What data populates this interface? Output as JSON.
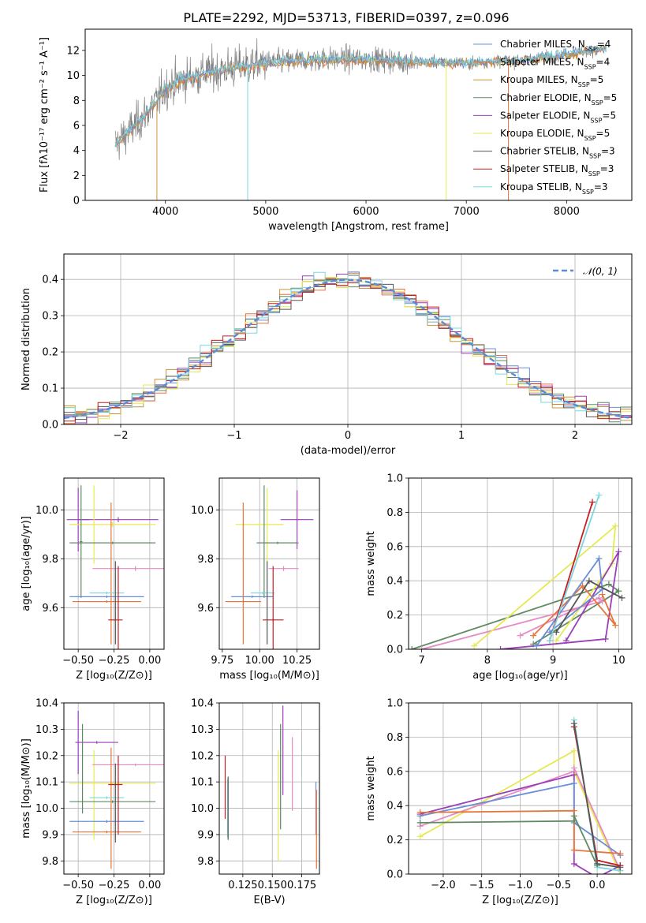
{
  "title": "PLATE=2292, MJD=53713, FIBERID=0397, z=0.096",
  "colors": {
    "Chabrier MILES": "#6a8ed8",
    "Salpeter MILES": "#e8743a",
    "Kroupa MILES": "#c8963a",
    "Chabrier ELODIE": "#5f8a62",
    "Salpeter ELODIE": "#9a3fb8",
    "Kroupa ELODIE": "#e6ea52",
    "Chabrier STELIB": "#555555",
    "Salpeter STELIB": "#c81e1e",
    "Kroupa STELIB": "#7ad7e0",
    "pink": "#e68ac3",
    "spectrum_gray": "#7f7f7f",
    "axis": "#000000",
    "grid": "#b0b0b0"
  },
  "chart_data": [
    {
      "id": "spectrum",
      "type": "line",
      "title": "PLATE=2292, MJD=53713, FIBERID=0397, z=0.096",
      "xlabel": "wavelength [Angstrom, rest frame]",
      "ylabel": "Flux [fλ10⁻¹⁷ erg cm⁻² s⁻¹ A⁻¹]",
      "xlim": [
        3200,
        8650
      ],
      "ylim": [
        0,
        13.7
      ],
      "xticks": [
        "4000",
        "5000",
        "6000",
        "7000",
        "8000"
      ],
      "yticks": [
        "0",
        "2",
        "4",
        "6",
        "8",
        "10",
        "12"
      ],
      "grid": false,
      "legend_position": "right",
      "series": [
        {
          "name": "Chabrier MILES, N_SSP=4"
        },
        {
          "name": "Salpeter MILES, N_SSP=4"
        },
        {
          "name": "Kroupa MILES, N_SSP=5"
        },
        {
          "name": "Chabrier ELODIE, N_SSP=5"
        },
        {
          "name": "Salpeter ELODIE, N_SSP=5"
        },
        {
          "name": "Kroupa ELODIE, N_SSP=5"
        },
        {
          "name": "Chabrier STELIB, N_SSP=3"
        },
        {
          "name": "Salpeter STELIB, N_SSP=3"
        },
        {
          "name": "Kroupa STELIB, N_SSP=3"
        }
      ],
      "continuum": {
        "x": [
          3500,
          3700,
          3900,
          4000,
          4200,
          4500,
          5000,
          5500,
          6000,
          6500,
          7000,
          7500,
          8000,
          8400
        ],
        "y": [
          4.5,
          6.0,
          7.8,
          9.0,
          9.8,
          10.4,
          11.0,
          11.3,
          11.3,
          11.1,
          11.0,
          11.2,
          11.7,
          12.2
        ]
      },
      "noise_amplitude": 1.6
    },
    {
      "id": "residuals",
      "type": "bar",
      "xlabel": "(data-model)/error",
      "ylabel": "Normed distribution",
      "xlim": [
        -2.5,
        2.5
      ],
      "ylim": [
        0,
        0.47
      ],
      "xticks": [
        "−2",
        "−1",
        "0",
        "1",
        "2"
      ],
      "yticks": [
        "0.0",
        "0.1",
        "0.2",
        "0.3",
        "0.4"
      ],
      "grid": true,
      "legend": "𝒩(0, 1)",
      "legend_position": "top-right",
      "bin_width": 0.1
    },
    {
      "id": "age_vs_Z",
      "type": "scatter",
      "xlabel": "Z [log₁₀(Z/Z⊙)]",
      "ylabel": "age  [log₁₀(age/yr)]",
      "xlim": [
        -0.6,
        0.1
      ],
      "ylim": [
        9.43,
        10.13
      ],
      "xticks": [
        "−0.50",
        "−0.25",
        "0.00"
      ],
      "yticks": [
        "9.6",
        "9.8",
        "10.0"
      ],
      "grid": true,
      "errorbars": [
        {
          "series": "Salpeter ELODIE",
          "x": -0.5,
          "xerr": 0.08,
          "y": 9.96,
          "yerr": 0.13
        },
        {
          "series": "Salpeter ELODIE",
          "x": -0.22,
          "xerr": 0.28,
          "y": 9.96,
          "yerr": 0.01
        },
        {
          "series": "Kroupa ELODIE",
          "x": -0.39,
          "xerr": 0.0,
          "y": 9.94,
          "yerr": 0.16
        },
        {
          "series": "Kroupa ELODIE",
          "x": -0.26,
          "xerr": 0.3,
          "y": 9.94,
          "yerr": 0.01
        },
        {
          "series": "Chabrier ELODIE",
          "x": -0.48,
          "xerr": 0.01,
          "y": 9.87,
          "yerr": 0.23
        },
        {
          "series": "Chabrier ELODIE",
          "x": -0.26,
          "xerr": 0.3,
          "y": 9.865,
          "yerr": 0.005
        },
        {
          "series": "pink",
          "x": -0.1,
          "xerr": 0.3,
          "y": 9.76,
          "yerr": 0.01
        },
        {
          "series": "Chabrier MILES",
          "x": -0.3,
          "xerr": 0.26,
          "y": 9.645,
          "yerr": 0.005
        },
        {
          "series": "Salpeter MILES",
          "x": -0.3,
          "xerr": 0.24,
          "y": 9.625,
          "yerr": 0.005
        },
        {
          "series": "Salpeter MILES",
          "x": -0.27,
          "xerr": 0.0,
          "y": 9.74,
          "yerr": 0.29
        },
        {
          "series": "Kroupa STELIB",
          "x": -0.3,
          "xerr": 0.12,
          "y": 9.66,
          "yerr": 0.005
        },
        {
          "series": "Salpeter STELIB",
          "x": -0.24,
          "xerr": 0.05,
          "y": 9.55,
          "yerr": 0.005
        },
        {
          "series": "Salpeter STELIB",
          "x": -0.22,
          "xerr": 0.0,
          "y": 9.6,
          "yerr": 0.17
        },
        {
          "series": "Chabrier STELIB",
          "x": -0.24,
          "xerr": 0.0,
          "y": 9.62,
          "yerr": 0.17
        }
      ]
    },
    {
      "id": "age_vs_mass",
      "type": "scatter",
      "xlabel": "mass [log₁₀(M/M⊙)]",
      "ylabel": "",
      "xlim": [
        9.73,
        10.4
      ],
      "ylim": [
        9.43,
        10.13
      ],
      "xticks": [
        "9.75",
        "10.00",
        "10.25"
      ],
      "yticks": [
        "9.6",
        "9.8",
        "10.0"
      ],
      "grid": true,
      "errorbars": [
        {
          "series": "Salpeter ELODIE",
          "x": 10.25,
          "xerr": 0.0,
          "y": 9.96,
          "yerr": 0.12
        },
        {
          "series": "Salpeter ELODIE",
          "x": 10.25,
          "xerr": 0.11,
          "y": 9.96,
          "yerr": 0.005
        },
        {
          "series": "Kroupa ELODIE",
          "x": 10.05,
          "xerr": 0.0,
          "y": 9.94,
          "yerr": 0.15
        },
        {
          "series": "Kroupa ELODIE",
          "x": 10.0,
          "xerr": 0.16,
          "y": 9.94,
          "yerr": 0.005
        },
        {
          "series": "Chabrier ELODIE",
          "x": 10.03,
          "xerr": 0.0,
          "y": 9.87,
          "yerr": 0.23
        },
        {
          "series": "Chabrier ELODIE",
          "x": 10.12,
          "xerr": 0.14,
          "y": 9.865,
          "yerr": 0.005
        },
        {
          "series": "pink",
          "x": 10.16,
          "xerr": 0.1,
          "y": 9.76,
          "yerr": 0.01
        },
        {
          "series": "Chabrier MILES",
          "x": 9.95,
          "xerr": 0.14,
          "y": 9.645,
          "yerr": 0.005
        },
        {
          "series": "Salpeter MILES",
          "x": 9.89,
          "xerr": 0.12,
          "y": 9.625,
          "yerr": 0.005
        },
        {
          "series": "Salpeter MILES",
          "x": 9.89,
          "xerr": 0.0,
          "y": 9.74,
          "yerr": 0.29
        },
        {
          "series": "Kroupa STELIB",
          "x": 10.02,
          "xerr": 0.08,
          "y": 9.66,
          "yerr": 0.005
        },
        {
          "series": "Salpeter STELIB",
          "x": 10.09,
          "xerr": 0.07,
          "y": 9.55,
          "yerr": 0.005
        },
        {
          "series": "Salpeter STELIB",
          "x": 10.09,
          "xerr": 0.0,
          "y": 9.6,
          "yerr": 0.17
        },
        {
          "series": "Chabrier STELIB",
          "x": 10.05,
          "xerr": 0.0,
          "y": 9.62,
          "yerr": 0.17
        }
      ]
    },
    {
      "id": "weight_vs_age",
      "type": "line",
      "xlabel": "age  [log₁₀(age/yr)]",
      "ylabel": "mass weight",
      "xlim": [
        6.8,
        10.2
      ],
      "ylim": [
        0,
        1.0
      ],
      "xticks": [
        "7",
        "8",
        "9",
        "10"
      ],
      "yticks": [
        "0.0",
        "0.2",
        "0.4",
        "0.6",
        "0.8",
        "1.0"
      ],
      "grid": true,
      "series": [
        {
          "series": "Chabrier ELODIE",
          "x": [
            6.85,
            9.85,
            10.0,
            8.7
          ],
          "y": [
            0.0,
            0.38,
            0.34,
            0.03
          ]
        },
        {
          "series": "pink",
          "x": [
            7.0,
            9.75,
            9.7,
            8.5
          ],
          "y": [
            0.0,
            0.28,
            0.3,
            0.08
          ]
        },
        {
          "series": "Kroupa ELODIE",
          "x": [
            7.8,
            9.95,
            9.9,
            9.05
          ],
          "y": [
            0.02,
            0.72,
            0.5,
            0.05
          ]
        },
        {
          "series": "Salpeter ELODIE",
          "x": [
            8.2,
            9.8,
            10.0,
            9.2
          ],
          "y": [
            0.0,
            0.06,
            0.57,
            0.05
          ]
        },
        {
          "series": "Salpeter MILES",
          "x": [
            8.7,
            9.45,
            9.95,
            9.75
          ],
          "y": [
            0.08,
            0.37,
            0.14,
            0.32
          ]
        },
        {
          "series": "Chabrier MILES",
          "x": [
            8.75,
            9.7,
            9.75,
            8.95
          ],
          "y": [
            0.02,
            0.53,
            0.35,
            0.1
          ]
        },
        {
          "series": "Salpeter STELIB",
          "x": [
            8.95,
            9.6
          ],
          "y": [
            0.05,
            0.86
          ]
        },
        {
          "series": "Kroupa STELIB",
          "x": [
            8.95,
            9.7
          ],
          "y": [
            0.05,
            0.9
          ]
        },
        {
          "series": "Chabrier STELIB",
          "x": [
            9.05,
            9.55,
            10.05
          ],
          "y": [
            0.1,
            0.4,
            0.3
          ]
        }
      ]
    },
    {
      "id": "mass_vs_Z",
      "type": "scatter",
      "xlabel": "Z [log₁₀(Z/Z⊙)]",
      "ylabel": "mass [log₁₀(M/M⊙)]",
      "xlim": [
        -0.6,
        0.1
      ],
      "ylim": [
        9.75,
        10.4
      ],
      "xticks": [
        "−0.50",
        "−0.25",
        "0.00"
      ],
      "yticks": [
        "9.8",
        "9.9",
        "10.0",
        "10.1",
        "10.2",
        "10.3",
        "10.4"
      ],
      "grid": true,
      "errorbars": [
        {
          "series": "Salpeter ELODIE",
          "x": -0.5,
          "xerr": 0.0,
          "y": 10.25,
          "yerr": 0.12
        },
        {
          "series": "Salpeter ELODIE",
          "x": -0.37,
          "xerr": 0.15,
          "y": 10.25,
          "yerr": 0.005
        },
        {
          "series": "Kroupa ELODIE",
          "x": -0.39,
          "xerr": 0.0,
          "y": 10.05,
          "yerr": 0.17
        },
        {
          "series": "Kroupa ELODIE",
          "x": -0.26,
          "xerr": 0.3,
          "y": 10.095,
          "yerr": 0.005
        },
        {
          "series": "Chabrier ELODIE",
          "x": -0.47,
          "xerr": 0.0,
          "y": 10.15,
          "yerr": 0.17
        },
        {
          "series": "Chabrier ELODIE",
          "x": -0.26,
          "xerr": 0.3,
          "y": 10.025,
          "yerr": 0.005
        },
        {
          "series": "pink",
          "x": -0.1,
          "xerr": 0.3,
          "y": 10.165,
          "yerr": 0.005
        },
        {
          "series": "Chabrier MILES",
          "x": -0.3,
          "xerr": 0.26,
          "y": 9.95,
          "yerr": 0.005
        },
        {
          "series": "Salpeter MILES",
          "x": -0.3,
          "xerr": 0.24,
          "y": 9.91,
          "yerr": 0.005
        },
        {
          "series": "Salpeter MILES",
          "x": -0.27,
          "xerr": 0.0,
          "y": 10.0,
          "yerr": 0.23
        },
        {
          "series": "Kroupa STELIB",
          "x": -0.3,
          "xerr": 0.12,
          "y": 10.04,
          "yerr": 0.005
        },
        {
          "series": "Salpeter STELIB",
          "x": -0.24,
          "xerr": 0.05,
          "y": 10.09,
          "yerr": 0.005
        },
        {
          "series": "Salpeter STELIB",
          "x": -0.22,
          "xerr": 0.0,
          "y": 10.05,
          "yerr": 0.15
        },
        {
          "series": "Chabrier STELIB",
          "x": -0.24,
          "xerr": 0.0,
          "y": 10.02,
          "yerr": 0.15
        }
      ]
    },
    {
      "id": "mass_vs_ebv",
      "type": "scatter",
      "xlabel": "E(B-V)",
      "ylabel": "",
      "xlim": [
        0.105,
        0.19
      ],
      "ylim": [
        9.75,
        10.4
      ],
      "xticks": [
        "0.125",
        "0.150",
        "0.175"
      ],
      "yticks": [
        "9.8",
        "9.9",
        "10.0",
        "10.1",
        "10.2",
        "10.3",
        "10.4"
      ],
      "grid": true,
      "errorbars": [
        {
          "series": "Salpeter STELIB",
          "x": 0.11,
          "y": 10.08,
          "yerr": 0.12
        },
        {
          "series": "Kroupa STELIB",
          "x": 0.112,
          "y": 10.0,
          "yerr": 0.11
        },
        {
          "series": "Chabrier STELIB",
          "x": 0.1125,
          "y": 10.0,
          "yerr": 0.12
        },
        {
          "series": "Kroupa ELODIE",
          "x": 0.155,
          "y": 10.01,
          "yerr": 0.21
        },
        {
          "series": "Chabrier ELODIE",
          "x": 0.157,
          "y": 10.12,
          "yerr": 0.2
        },
        {
          "series": "Salpeter ELODIE",
          "x": 0.159,
          "y": 10.22,
          "yerr": 0.17
        },
        {
          "series": "pink",
          "x": 0.167,
          "y": 10.13,
          "yerr": 0.14
        },
        {
          "series": "Chabrier MILES",
          "x": 0.187,
          "y": 10.0,
          "yerr": 0.1
        },
        {
          "series": "Salpeter MILES",
          "x": 0.1875,
          "y": 9.92,
          "yerr": 0.15
        }
      ]
    },
    {
      "id": "weight_vs_Z",
      "type": "line",
      "xlabel": "Z [log₁₀(Z/Z⊙)]",
      "ylabel": "mass weight",
      "xlim": [
        -2.45,
        0.45
      ],
      "ylim": [
        0,
        1.0
      ],
      "xticks": [
        "−2.0",
        "−1.5",
        "−1.0",
        "−0.5",
        "0.0"
      ],
      "yticks": [
        "0.0",
        "0.2",
        "0.4",
        "0.6",
        "0.8",
        "1.0"
      ],
      "grid": true,
      "series": [
        {
          "series": "Kroupa ELODIE",
          "x": [
            -2.3,
            -0.3,
            -0.3,
            0.3
          ],
          "y": [
            0.22,
            0.72,
            0.6,
            0.0
          ]
        },
        {
          "series": "pink",
          "x": [
            -2.3,
            -0.3,
            -0.3,
            0.3
          ],
          "y": [
            0.28,
            0.6,
            0.62,
            0.02
          ]
        },
        {
          "series": "Salpeter ELODIE",
          "x": [
            -2.3,
            -0.3,
            -0.3,
            0.0,
            0.3
          ],
          "y": [
            0.35,
            0.58,
            0.06,
            -0.02,
            0.05
          ]
        },
        {
          "series": "Chabrier MILES",
          "x": [
            -2.3,
            -0.3,
            -0.3,
            0.3
          ],
          "y": [
            0.34,
            0.53,
            0.3,
            0.11
          ]
        },
        {
          "series": "Salpeter MILES",
          "x": [
            -2.3,
            -0.3,
            -0.3,
            0.3
          ],
          "y": [
            0.36,
            0.37,
            0.14,
            0.12
          ]
        },
        {
          "series": "Chabrier ELODIE",
          "x": [
            -2.3,
            -0.3,
            -0.3,
            0.0
          ],
          "y": [
            0.3,
            0.31,
            0.34,
            0.05
          ]
        },
        {
          "series": "Salpeter STELIB",
          "x": [
            -0.3,
            0.0,
            0.3
          ],
          "y": [
            0.86,
            0.08,
            0.05
          ]
        },
        {
          "series": "Kroupa STELIB",
          "x": [
            -0.3,
            0.0,
            0.3
          ],
          "y": [
            0.9,
            0.04,
            0.02
          ]
        },
        {
          "series": "Chabrier STELIB",
          "x": [
            -0.3,
            0.0,
            0.3
          ],
          "y": [
            0.88,
            0.06,
            0.04
          ]
        }
      ]
    }
  ]
}
